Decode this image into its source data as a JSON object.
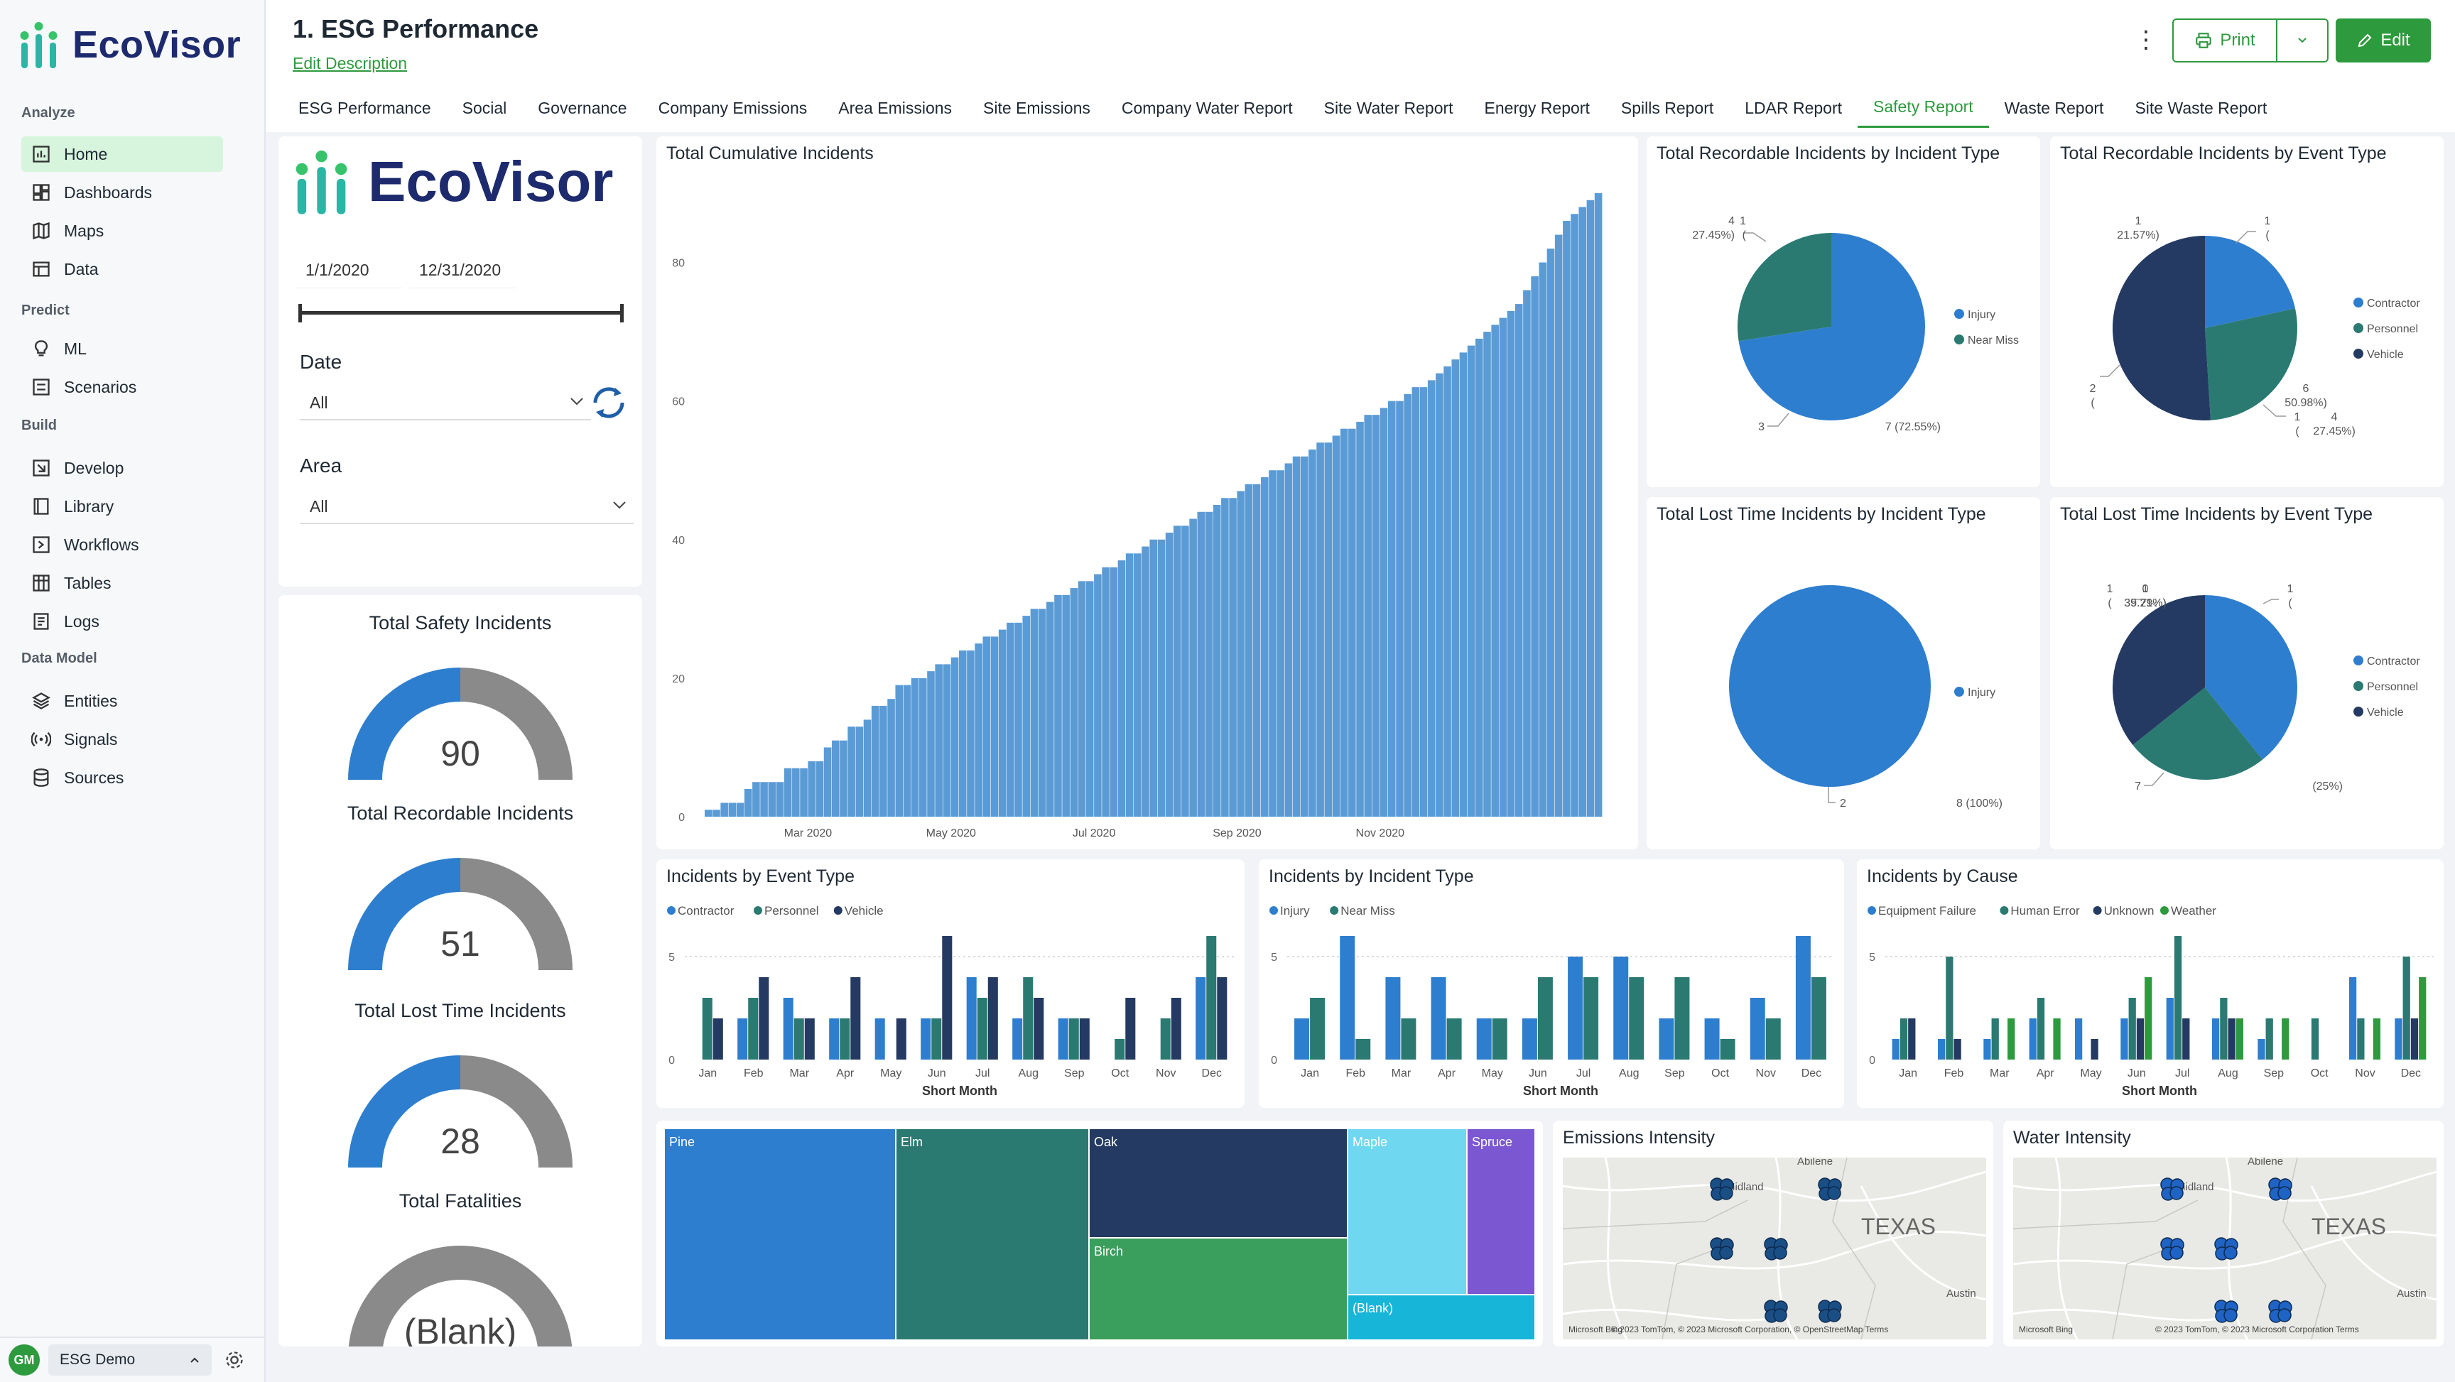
{
  "app": {
    "name": "EcoVisor"
  },
  "sidebar": {
    "sections": [
      {
        "label": "Analyze",
        "items": [
          {
            "label": "Home",
            "icon": "home-chart-icon",
            "active": true
          },
          {
            "label": "Dashboards",
            "icon": "dashboards-icon"
          },
          {
            "label": "Maps",
            "icon": "map-icon"
          },
          {
            "label": "Data",
            "icon": "data-table-icon"
          }
        ]
      },
      {
        "label": "Predict",
        "items": [
          {
            "label": "ML",
            "icon": "lightbulb-icon"
          },
          {
            "label": "Scenarios",
            "icon": "scenarios-icon"
          }
        ]
      },
      {
        "label": "Build",
        "items": [
          {
            "label": "Develop",
            "icon": "develop-icon"
          },
          {
            "label": "Library",
            "icon": "library-icon"
          },
          {
            "label": "Workflows",
            "icon": "workflows-icon"
          },
          {
            "label": "Tables",
            "icon": "tables-icon"
          },
          {
            "label": "Logs",
            "icon": "logs-icon"
          }
        ]
      },
      {
        "label": "Data Model",
        "items": [
          {
            "label": "Entities",
            "icon": "entities-icon"
          },
          {
            "label": "Signals",
            "icon": "signals-icon"
          },
          {
            "label": "Sources",
            "icon": "sources-icon"
          }
        ]
      }
    ],
    "user": {
      "initials": "GM",
      "workspace": "ESG Demo"
    }
  },
  "header": {
    "title": "1. ESG Performance",
    "edit_description": "Edit Description",
    "print_label": "Print",
    "edit_label": "Edit",
    "tabs": [
      "ESG Performance",
      "Social",
      "Governance",
      "Company Emissions",
      "Area Emissions",
      "Site Emissions",
      "Company Water Report",
      "Site Water Report",
      "Energy Report",
      "Spills Report",
      "LDAR Report",
      "Safety Report",
      "Waste Report",
      "Site Waste Report"
    ],
    "active_tab": "Safety Report"
  },
  "filters": {
    "date_start": "1/1/2020",
    "date_end": "12/31/2020",
    "date_label": "Date",
    "date_value": "All",
    "area_label": "Area",
    "area_value": "All"
  },
  "kpis": [
    {
      "title": "Total Safety Incidents",
      "value": "90",
      "fraction": 0.5
    },
    {
      "title": "Total Recordable Incidents",
      "value": "51",
      "fraction": 0.5
    },
    {
      "title": "Total Lost Time Incidents",
      "value": "28",
      "fraction": 0.5
    },
    {
      "title": "Total Fatalities",
      "value": "(Blank)",
      "fraction": 0
    }
  ],
  "colors": {
    "blue": "#2e7ecf",
    "teal": "#2a7a72",
    "navy": "#243a63",
    "green": "#2e9a3e",
    "gray": "#8a8a8a",
    "cumulative": "#5b9bd5"
  },
  "charts": {
    "cumulative": {
      "title": "Total Cumulative Incidents",
      "chart_data": {
        "type": "bar",
        "ylim": [
          0,
          90
        ],
        "y_ticks": [
          0,
          20,
          40,
          60,
          80
        ],
        "x_ticks": [
          "Mar 2020",
          "May 2020",
          "Jul 2020",
          "Sep 2020",
          "Nov 2020"
        ],
        "points": [
          [
            0,
            1
          ],
          [
            2,
            2
          ],
          [
            4,
            2
          ],
          [
            5,
            4
          ],
          [
            6,
            5
          ],
          [
            8,
            5
          ],
          [
            10,
            7
          ],
          [
            12,
            7
          ],
          [
            13,
            8
          ],
          [
            15,
            10
          ],
          [
            16,
            11
          ],
          [
            18,
            13
          ],
          [
            20,
            14
          ],
          [
            21,
            16
          ],
          [
            23,
            17
          ],
          [
            24,
            19
          ],
          [
            26,
            20
          ],
          [
            28,
            21
          ],
          [
            29,
            22
          ],
          [
            31,
            23
          ],
          [
            32,
            24
          ],
          [
            34,
            25
          ],
          [
            35,
            26
          ],
          [
            37,
            27
          ],
          [
            38,
            28
          ],
          [
            40,
            29
          ],
          [
            41,
            30
          ],
          [
            43,
            31
          ],
          [
            44,
            32
          ],
          [
            46,
            33
          ],
          [
            47,
            34
          ],
          [
            49,
            35
          ],
          [
            50,
            36
          ],
          [
            52,
            37
          ],
          [
            53,
            38
          ],
          [
            55,
            39
          ],
          [
            56,
            40
          ],
          [
            58,
            41
          ],
          [
            59,
            42
          ],
          [
            61,
            43
          ],
          [
            62,
            44
          ],
          [
            64,
            45
          ],
          [
            65,
            46
          ],
          [
            67,
            47
          ],
          [
            68,
            48
          ],
          [
            70,
            49
          ],
          [
            71,
            50
          ],
          [
            73,
            51
          ],
          [
            74,
            52
          ],
          [
            76,
            53
          ],
          [
            77,
            54
          ],
          [
            79,
            55
          ],
          [
            80,
            56
          ],
          [
            82,
            57
          ],
          [
            83,
            58
          ],
          [
            85,
            59
          ],
          [
            86,
            60
          ],
          [
            88,
            61
          ],
          [
            89,
            62
          ],
          [
            91,
            63
          ],
          [
            92,
            64
          ],
          [
            93,
            65
          ],
          [
            94,
            66
          ],
          [
            95,
            67
          ],
          [
            96,
            68
          ],
          [
            97,
            69
          ],
          [
            98,
            70
          ],
          [
            99,
            71
          ],
          [
            100,
            72
          ],
          [
            101,
            73
          ],
          [
            102,
            74
          ],
          [
            103,
            76
          ],
          [
            104,
            78
          ],
          [
            105,
            80
          ],
          [
            106,
            82
          ],
          [
            107,
            84
          ],
          [
            108,
            86
          ],
          [
            109,
            87
          ],
          [
            110,
            88
          ],
          [
            111,
            89
          ],
          [
            112,
            90
          ]
        ],
        "tick_positions": [
          13,
          31,
          49,
          67,
          85
        ],
        "n_bars": 113
      }
    },
    "rec_by_incident": {
      "title": "Total Recordable Incidents by Incident Type",
      "chart_data": {
        "type": "pie",
        "slices": [
          {
            "label": "Injury",
            "value": 37,
            "text": "37 (72.55%)"
          },
          {
            "label": "Near Miss",
            "value": 14,
            "text": "14 (27.45%)"
          }
        ]
      }
    },
    "rec_by_event": {
      "title": "Total Recordable Incidents by Event Type",
      "chart_data": {
        "type": "pie",
        "slices": [
          {
            "label": "Contractor",
            "value": 11,
            "text": "11 (21.57%)"
          },
          {
            "label": "Personnel",
            "value": 14,
            "text": "14 (27.45%)"
          },
          {
            "label": "Vehicle",
            "value": 26,
            "text": "26 (50.98%)"
          }
        ]
      }
    },
    "lost_by_incident": {
      "title": "Total Lost Time Incidents by Incident Type",
      "chart_data": {
        "type": "pie",
        "slices": [
          {
            "label": "Injury",
            "value": 28,
            "text": "28 (100%)"
          }
        ]
      }
    },
    "lost_by_event": {
      "title": "Total Lost Time Incidents by Event Type",
      "chart_data": {
        "type": "pie",
        "slices": [
          {
            "label": "Contractor",
            "value": 11,
            "text": "11 (39.29%)"
          },
          {
            "label": "Personnel",
            "value": 7,
            "text": "7 (25%)"
          },
          {
            "label": "Vehicle",
            "value": 10,
            "text": "10 (35.71%)"
          }
        ]
      }
    },
    "by_event": {
      "title": "Incidents by Event Type",
      "chart_data": {
        "type": "bar",
        "xlabel": "Short Month",
        "categories": [
          "Jan",
          "Feb",
          "Mar",
          "Apr",
          "May",
          "Jun",
          "Jul",
          "Aug",
          "Sep",
          "Oct",
          "Nov",
          "Dec"
        ],
        "ylim": [
          0,
          6
        ],
        "y_ticks": [
          0,
          5
        ],
        "series": [
          {
            "name": "Contractor",
            "values": [
              0,
              2,
              3,
              2,
              2,
              2,
              4,
              2,
              2,
              0,
              0,
              4
            ]
          },
          {
            "name": "Personnel",
            "values": [
              3,
              3,
              2,
              2,
              0,
              2,
              3,
              4,
              2,
              1,
              2,
              6
            ]
          },
          {
            "name": "Vehicle",
            "values": [
              2,
              4,
              2,
              4,
              2,
              6,
              4,
              3,
              2,
              3,
              3,
              4
            ]
          }
        ]
      }
    },
    "by_incident": {
      "title": "Incidents by Incident Type",
      "chart_data": {
        "type": "bar",
        "xlabel": "Short Month",
        "categories": [
          "Jan",
          "Feb",
          "Mar",
          "Apr",
          "May",
          "Jun",
          "Jul",
          "Aug",
          "Sep",
          "Oct",
          "Nov",
          "Dec"
        ],
        "ylim": [
          0,
          6
        ],
        "y_ticks": [
          0,
          5
        ],
        "series": [
          {
            "name": "Injury",
            "values": [
              2,
              6,
              4,
              4,
              2,
              2,
              5,
              5,
              2,
              2,
              3,
              6
            ]
          },
          {
            "name": "Near Miss",
            "values": [
              3,
              1,
              2,
              2,
              2,
              4,
              4,
              4,
              4,
              1,
              2,
              4
            ]
          }
        ]
      }
    },
    "by_cause": {
      "title": "Incidents by Cause",
      "chart_data": {
        "type": "bar",
        "xlabel": "Short Month",
        "categories": [
          "Jan",
          "Feb",
          "Mar",
          "Apr",
          "May",
          "Jun",
          "Jul",
          "Aug",
          "Sep",
          "Oct",
          "Nov",
          "Dec"
        ],
        "ylim": [
          0,
          6
        ],
        "y_ticks": [
          0,
          5
        ],
        "series": [
          {
            "name": "Equipment Failure",
            "values": [
              1,
              1,
              1,
              2,
              2,
              2,
              3,
              2,
              1,
              0,
              4,
              2
            ]
          },
          {
            "name": "Human Error",
            "values": [
              2,
              5,
              2,
              3,
              0,
              3,
              6,
              3,
              2,
              2,
              2,
              5
            ]
          },
          {
            "name": "Unknown",
            "values": [
              2,
              1,
              0,
              0,
              1,
              2,
              2,
              2,
              0,
              0,
              0,
              2
            ]
          },
          {
            "name": "Weather",
            "values": [
              0,
              0,
              2,
              2,
              0,
              4,
              0,
              2,
              2,
              0,
              2,
              4
            ]
          }
        ]
      }
    }
  },
  "treemap": {
    "items": [
      {
        "label": "Pine",
        "value": 22,
        "color": "#2e7ecf"
      },
      {
        "label": "Elm",
        "value": 19,
        "color": "#2a7a72"
      },
      {
        "label": "Oak",
        "value": 10,
        "color": "#243a63"
      },
      {
        "label": "Birch",
        "value": 10,
        "color": "#3a9e5c"
      },
      {
        "label": "Maple",
        "value": 7,
        "color": "#6fd8f0"
      },
      {
        "label": "Spruce",
        "value": 4,
        "color": "#7b57d1"
      },
      {
        "label": "(Blank)",
        "value": 2,
        "color": "#17b6d8"
      }
    ]
  },
  "maps": [
    {
      "title": "Emissions Intensity",
      "state_label": "TEXAS",
      "cities": [
        "Abilene",
        "Midland",
        "Austin"
      ],
      "attribution": "© 2023 TomTom, © 2023 Microsoft Corporation, © OpenStreetMap  Terms",
      "provider": "Microsoft Bing"
    },
    {
      "title": "Water Intensity",
      "state_label": "TEXAS",
      "cities": [
        "Abilene",
        "Midland",
        "Austin"
      ],
      "attribution": "© 2023 TomTom, © 2023 Microsoft Corporation  Terms",
      "provider": "Microsoft Bing"
    }
  ]
}
